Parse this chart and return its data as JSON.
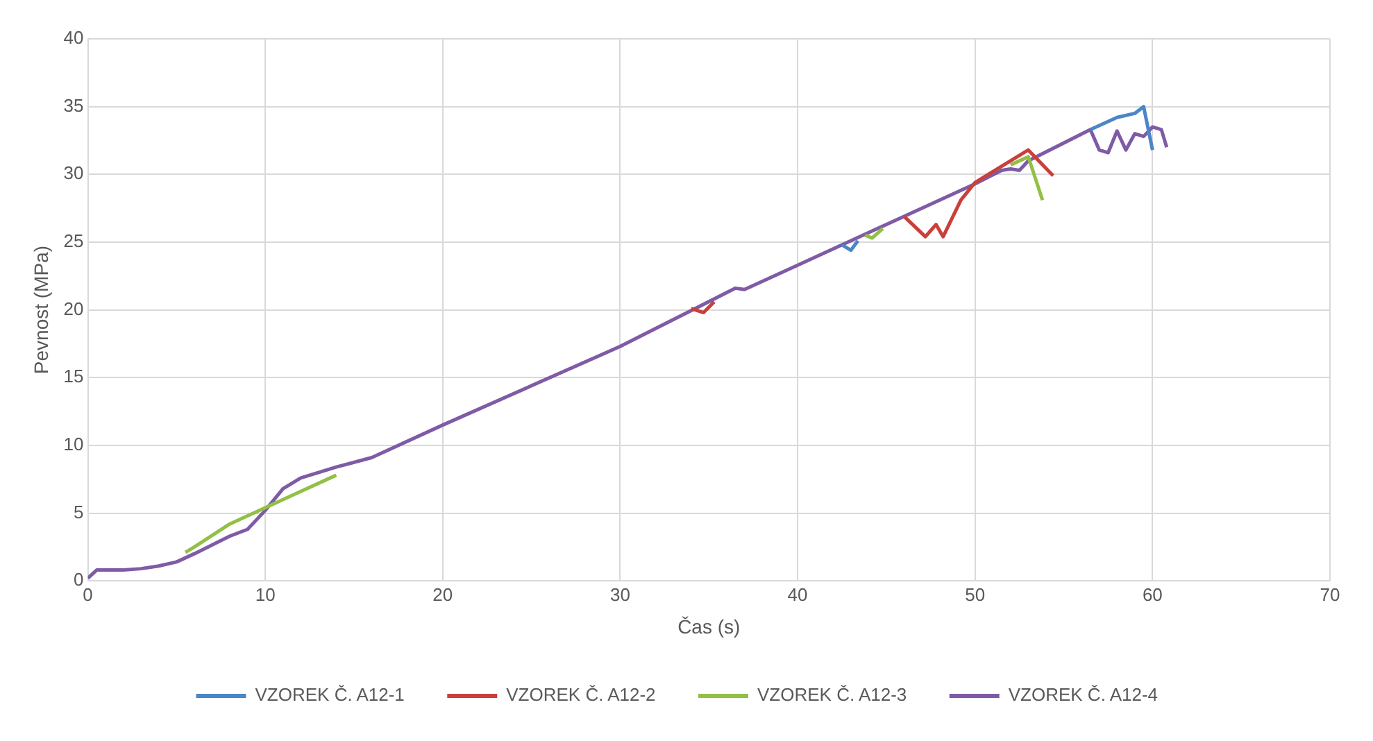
{
  "chart_data": {
    "type": "line",
    "xlabel": "Čas (s)",
    "ylabel": "Pevnost (MPa)",
    "xlim": [
      0,
      70
    ],
    "xticks": [
      0,
      10,
      20,
      30,
      40,
      50,
      60,
      70
    ],
    "ylim": [
      0,
      40
    ],
    "yticks": [
      0,
      5,
      10,
      15,
      20,
      25,
      30,
      35,
      40
    ],
    "grid": true,
    "legend": "bottom",
    "marker": "none",
    "line_style": "solid",
    "series": [
      {
        "name": "VZOREK Č. A12-1",
        "color": "#4a86c8",
        "x": [
          42.5,
          43,
          43.4,
          50,
          56.5,
          58,
          59,
          59.5,
          60
        ],
        "values": [
          24.8,
          24.4,
          25.1,
          null,
          33.3,
          34.2,
          34.5,
          35,
          31.8
        ]
      },
      {
        "name": "VZOREK Č. A12-2",
        "color": "#c9403a",
        "x": [
          34,
          34.7,
          35.3,
          40,
          46,
          47.2,
          47.8,
          48.2,
          49.2,
          50,
          53,
          54.4
        ],
        "values": [
          20.1,
          19.8,
          20.6,
          null,
          26.9,
          25.4,
          26.3,
          25.4,
          28.1,
          29.4,
          31.8,
          29.9
        ]
      },
      {
        "name": "VZOREK Č. A12-3",
        "color": "#92c047",
        "x": [
          5.5,
          6,
          8,
          10,
          12,
          14,
          30,
          43.8,
          44.2,
          44.8,
          48,
          52,
          53,
          53.8
        ],
        "values": [
          2.1,
          2.5,
          4.2,
          5.4,
          6.6,
          7.8,
          null,
          25.5,
          25.3,
          26,
          null,
          30.7,
          31.3,
          28.1
        ]
      },
      {
        "name": "VZOREK Č. A12-4",
        "color": "#7f5ba6",
        "x": [
          0,
          0.5,
          2,
          3,
          4,
          5,
          6,
          8,
          9,
          10,
          11,
          12,
          14,
          16,
          20,
          30,
          36.5,
          37,
          37.5,
          40,
          50,
          51.5,
          52,
          52.5,
          53,
          56.5,
          57,
          57.5,
          58,
          58.5,
          59,
          59.5,
          60,
          60.5,
          60.8
        ],
        "values": [
          0.2,
          0.8,
          0.8,
          0.9,
          1.1,
          1.4,
          2,
          3.3,
          3.8,
          5.2,
          6.8,
          7.6,
          8.4,
          9.1,
          11.5,
          17.3,
          21.6,
          21.5,
          21.8,
          23.3,
          29.3,
          30.3,
          30.4,
          30.3,
          31,
          33.3,
          31.8,
          31.6,
          33.2,
          31.8,
          33,
          32.8,
          33.5,
          33.3,
          32
        ]
      }
    ]
  }
}
